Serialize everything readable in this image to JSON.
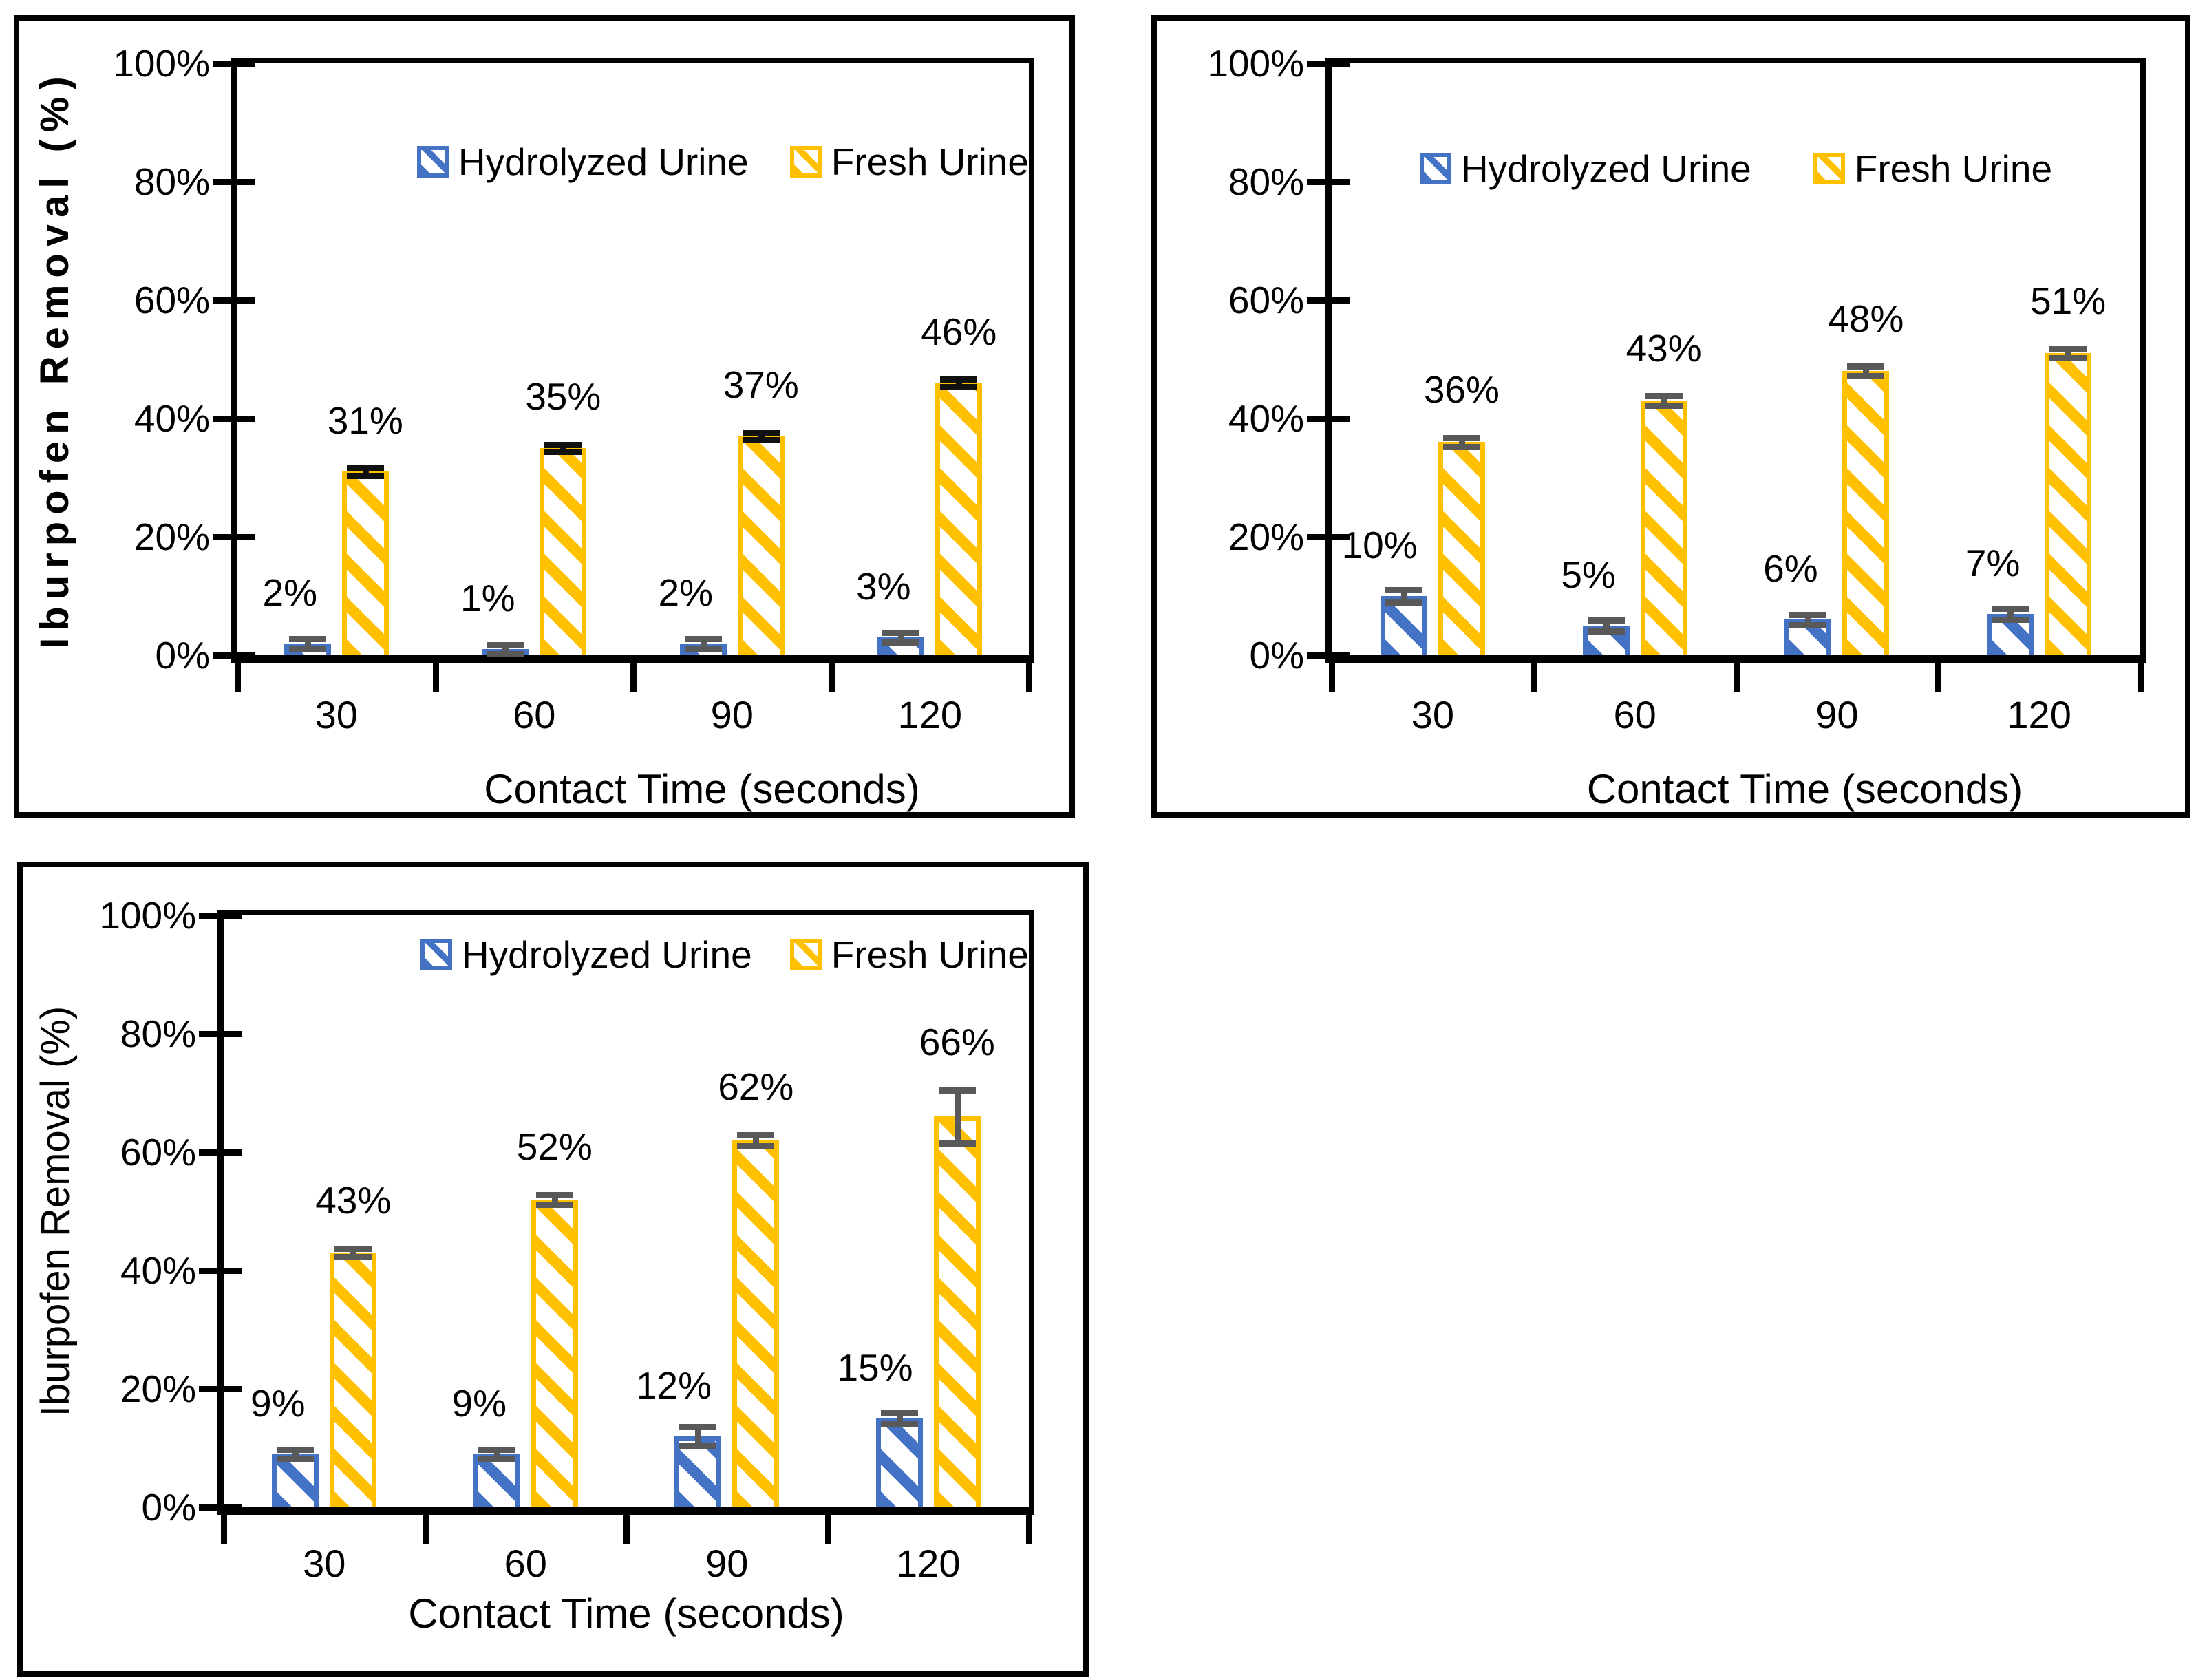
{
  "figure": {
    "background": "#ffffff",
    "border_color": "#000000"
  },
  "chart_data": [
    {
      "type": "bar",
      "position": "top-left",
      "title": "",
      "ylabel": "Iburpofen Removal (%)",
      "xlabel": "Contact Time (seconds)",
      "categories": [
        "30",
        "60",
        "90",
        "120"
      ],
      "ylim": [
        0,
        100
      ],
      "yticks": [
        0,
        20,
        40,
        60,
        80,
        100
      ],
      "ytick_labels": [
        "0%",
        "20%",
        "40%",
        "60%",
        "80%",
        "100%"
      ],
      "grid": false,
      "legend_position": "inside-top",
      "series": [
        {
          "name": "Hydrolyzed Urine",
          "color": "#4472C4",
          "pattern": "diagonal-stripe",
          "values": [
            2,
            1,
            2,
            3
          ],
          "data_labels": [
            "2%",
            "1%",
            "2%",
            "3%"
          ],
          "errors": [
            0.8,
            0.8,
            0.8,
            0.8
          ],
          "error_color": "#595959"
        },
        {
          "name": "Fresh Urine",
          "color": "#FFC000",
          "pattern": "diagonal-stripe",
          "values": [
            31,
            35,
            37,
            46
          ],
          "data_labels": [
            "31%",
            "35%",
            "37%",
            "46%"
          ],
          "errors": [
            0.6,
            0.6,
            0.6,
            0.6
          ],
          "error_color": "#111111"
        }
      ]
    },
    {
      "type": "bar",
      "position": "top-right",
      "title": "",
      "ylabel": "",
      "xlabel": "Contact Time (seconds)",
      "categories": [
        "30",
        "60",
        "90",
        "120"
      ],
      "ylim": [
        0,
        100
      ],
      "yticks": [
        0,
        20,
        40,
        60,
        80,
        100
      ],
      "ytick_labels": [
        "0%",
        "20%",
        "40%",
        "60%",
        "80%",
        "100%"
      ],
      "grid": false,
      "legend_position": "inside-top",
      "series": [
        {
          "name": "Hydrolyzed Urine",
          "color": "#4472C4",
          "pattern": "diagonal-stripe",
          "values": [
            10,
            5,
            6,
            7
          ],
          "data_labels": [
            "10%",
            "5%",
            "6%",
            "7%"
          ],
          "errors": [
            1.0,
            0.9,
            0.9,
            0.9
          ],
          "error_color": "#595959"
        },
        {
          "name": "Fresh Urine",
          "color": "#FFC000",
          "pattern": "diagonal-stripe",
          "values": [
            36,
            43,
            48,
            51
          ],
          "data_labels": [
            "36%",
            "43%",
            "48%",
            "51%"
          ],
          "errors": [
            0.8,
            0.8,
            0.8,
            0.8
          ],
          "error_color": "#595959"
        }
      ]
    },
    {
      "type": "bar",
      "position": "bottom-left",
      "title": "",
      "ylabel": "Iburpofen Removal (%)",
      "xlabel": "Contact Time (seconds)",
      "categories": [
        "30",
        "60",
        "90",
        "120"
      ],
      "ylim": [
        0,
        100
      ],
      "yticks": [
        0,
        20,
        40,
        60,
        80,
        100
      ],
      "ytick_labels": [
        "0%",
        "20%",
        "40%",
        "60%",
        "80%",
        "100%"
      ],
      "grid": false,
      "legend_position": "inside-top",
      "series": [
        {
          "name": "Hydrolyzed Urine",
          "color": "#4472C4",
          "pattern": "diagonal-stripe",
          "values": [
            9,
            9,
            12,
            15
          ],
          "data_labels": [
            "9%",
            "9%",
            "12%",
            "15%"
          ],
          "errors": [
            0.8,
            0.8,
            1.6,
            0.9
          ],
          "error_color": "#595959"
        },
        {
          "name": "Fresh Urine",
          "color": "#FFC000",
          "pattern": "diagonal-stripe",
          "values": [
            43,
            52,
            62,
            66
          ],
          "data_labels": [
            "43%",
            "52%",
            "62%",
            "66%"
          ],
          "errors": [
            0.7,
            0.8,
            0.9,
            4.5
          ],
          "error_color": "#595959"
        }
      ]
    }
  ]
}
